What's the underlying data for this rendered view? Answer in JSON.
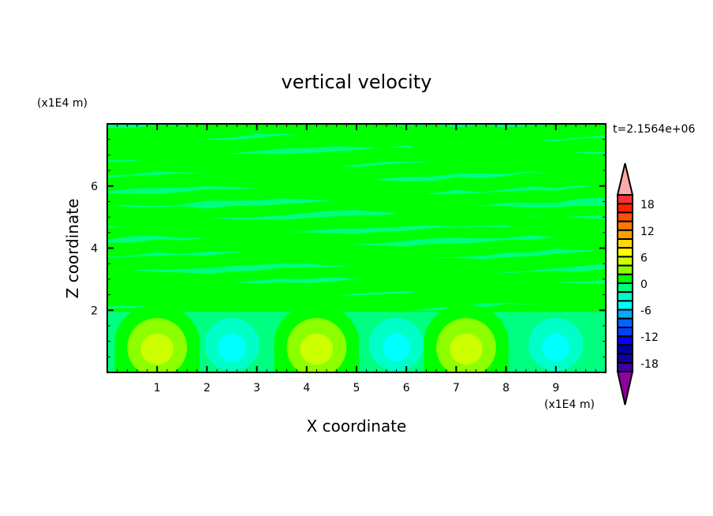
{
  "chart_data": {
    "type": "heatmap",
    "subtype": "filled-contour",
    "title": "vertical velocity",
    "xlabel": "X coordinate",
    "ylabel": "Z coordinate",
    "x_unit": "(x1E4 m)",
    "y_unit": "(x1E4 m)",
    "time_label": "t=2.1564e+06",
    "xlim": [
      0,
      10
    ],
    "ylim": [
      0,
      8
    ],
    "x_ticks": [
      1,
      2,
      3,
      4,
      5,
      6,
      7,
      8,
      9
    ],
    "y_ticks": [
      2,
      4,
      6
    ],
    "x_minor_step": 0.2,
    "y_minor_step": 0.5,
    "grid": false,
    "background_level_color": "#00ff80",
    "colorbar": {
      "levels": [
        20,
        18,
        16,
        14,
        12,
        10,
        8,
        6,
        4,
        2,
        0,
        -2,
        -4,
        -6,
        -8,
        -10,
        -12,
        -14,
        -16,
        -18,
        -20
      ],
      "tick_labels": [
        "18",
        "12",
        "6",
        "0",
        "-6",
        "-12",
        "-18"
      ],
      "tick_values": [
        18,
        12,
        6,
        0,
        -6,
        -12,
        -18
      ],
      "colors": [
        "#ff3030",
        "#ff2000",
        "#ff5000",
        "#ff7800",
        "#ffa000",
        "#ffd700",
        "#ffff00",
        "#ccff00",
        "#8cff00",
        "#00ff00",
        "#00ff80",
        "#00ffc8",
        "#00ffff",
        "#00aaff",
        "#0064ff",
        "#0040ff",
        "#0000ff",
        "#0000a0",
        "#1400a0",
        "#4000a0"
      ],
      "over_color": "#ffaaaa",
      "under_color": "#9000a0"
    },
    "cells": [
      {
        "x": 1.0,
        "z": 0.8,
        "sign": "up",
        "max_level": "4 to 6"
      },
      {
        "x": 2.5,
        "z": 0.9,
        "sign": "down",
        "min_level": "-6 to -4"
      },
      {
        "x": 4.2,
        "z": 0.8,
        "sign": "up",
        "max_level": "4 to 6"
      },
      {
        "x": 5.8,
        "z": 0.9,
        "sign": "down",
        "min_level": "-6 to -4"
      },
      {
        "x": 7.2,
        "z": 0.8,
        "sign": "up",
        "max_level": "4 to 6"
      },
      {
        "x": 9.0,
        "z": 0.9,
        "sign": "down",
        "min_level": "-6 to -4"
      }
    ]
  }
}
